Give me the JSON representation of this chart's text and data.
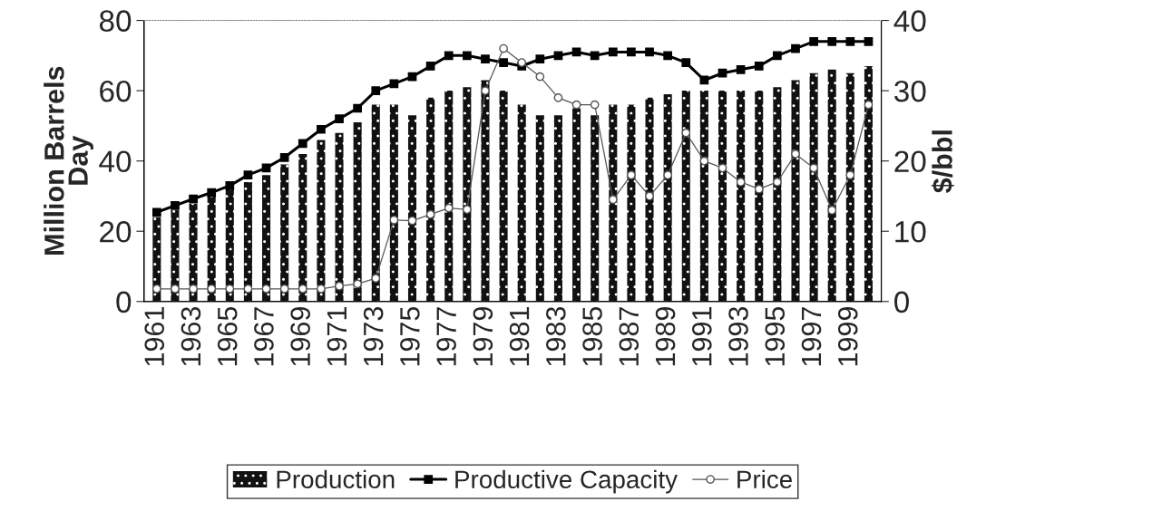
{
  "chart_data": {
    "type": "bar",
    "ylabel": "Million Barrels\nDay",
    "y2label": "$/bbl",
    "categories": [
      "1961",
      null,
      "1963",
      null,
      "1965",
      null,
      "1967",
      null,
      "1969",
      null,
      "1971",
      null,
      "1973",
      null,
      "1975",
      null,
      "1977",
      null,
      "1979",
      null,
      "1981",
      null,
      "1983",
      null,
      "1985",
      null,
      "1987",
      null,
      "1989",
      null,
      "1991",
      null,
      "1993",
      null,
      "1995",
      null,
      "1997",
      null,
      "1999",
      null
    ],
    "series": [
      {
        "name": "Production",
        "color": "#111111",
        "values": [
          24,
          26,
          27.8,
          30,
          32,
          34,
          36,
          39,
          42,
          46,
          48,
          51,
          56,
          56,
          53,
          58,
          60,
          61,
          63,
          60,
          56,
          53,
          53,
          55,
          53,
          56,
          56,
          58,
          59,
          60,
          60,
          60,
          60,
          60,
          61,
          63,
          65,
          66,
          65,
          67
        ]
      },
      {
        "name": "Productive Capacity",
        "type": "line",
        "color": "#000000",
        "marker": "square",
        "values": [
          25.4,
          27.3,
          29.2,
          31,
          33,
          36,
          38,
          41,
          45,
          49,
          52,
          55,
          60,
          62,
          64,
          67,
          70,
          70,
          69,
          68,
          67,
          69,
          70,
          71,
          70,
          71,
          71,
          71,
          70,
          68,
          63,
          65,
          66,
          67,
          70,
          72,
          74,
          74,
          74,
          74
        ]
      },
      {
        "name": "Price",
        "type": "line",
        "axis": "y2",
        "color": "#555555",
        "marker": "circle",
        "values": [
          1.8,
          1.8,
          1.8,
          1.8,
          1.8,
          1.8,
          1.8,
          1.8,
          1.8,
          1.8,
          2.2,
          2.5,
          3.3,
          11.6,
          11.5,
          12.4,
          13.3,
          13.1,
          30,
          36,
          34,
          32,
          29,
          28,
          28,
          14.5,
          18,
          15,
          18,
          24,
          20,
          19,
          17,
          16,
          17,
          21,
          19,
          13,
          18,
          28
        ]
      }
    ],
    "ylim": [
      0,
      80
    ],
    "yticks": [
      0,
      20,
      40,
      60,
      80
    ],
    "y2lim": [
      0,
      40
    ],
    "y2ticks": [
      0,
      10,
      20,
      30,
      40
    ],
    "legend": "bottom",
    "grid": false
  }
}
